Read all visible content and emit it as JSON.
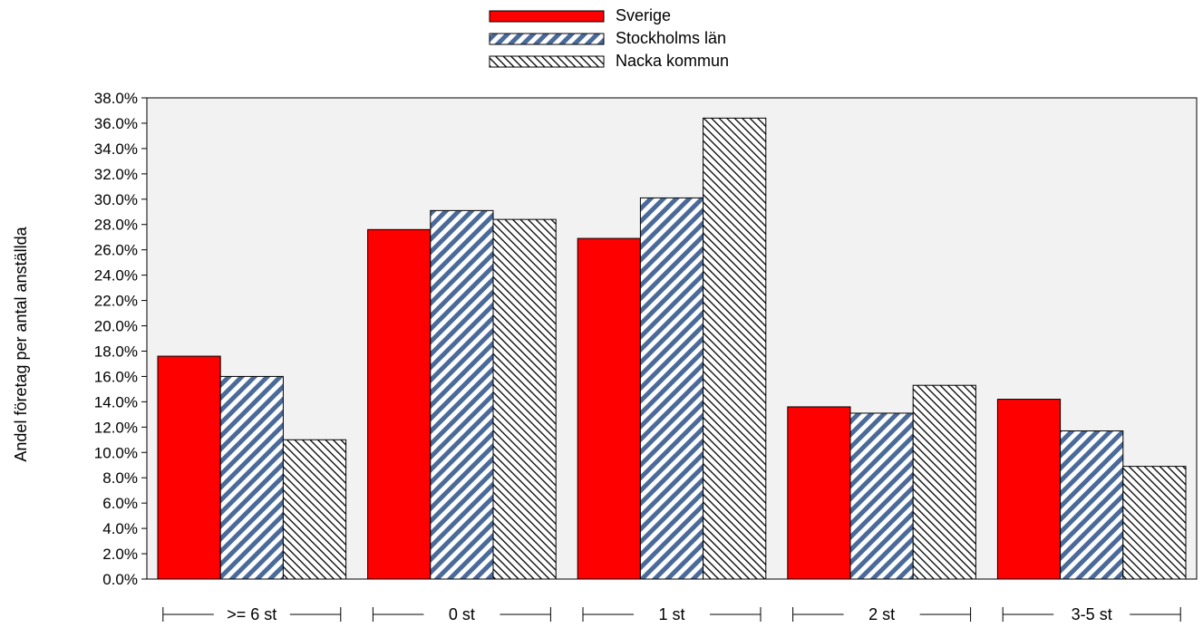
{
  "chart_data": {
    "type": "bar",
    "title": "",
    "xlabel": "",
    "ylabel": "Andel företag per antal anställda",
    "ylim": [
      0,
      38
    ],
    "yticks": [
      "0.0%",
      "2.0%",
      "4.0%",
      "6.0%",
      "8.0%",
      "10.0%",
      "12.0%",
      "14.0%",
      "16.0%",
      "18.0%",
      "20.0%",
      "22.0%",
      "24.0%",
      "26.0%",
      "28.0%",
      "30.0%",
      "32.0%",
      "34.0%",
      "36.0%",
      "38.0%"
    ],
    "categories": [
      ">= 6 st",
      "0 st",
      "1 st",
      "2 st",
      "3-5 st"
    ],
    "series": [
      {
        "name": "Sverige",
        "values": [
          17.6,
          27.6,
          26.9,
          13.6,
          14.2
        ],
        "color": "#ff0000",
        "pattern": "solid"
      },
      {
        "name": "Stockholms län",
        "values": [
          16.0,
          29.1,
          30.1,
          13.1,
          11.7
        ],
        "color": "#4a6a9a",
        "pattern": "stripes-forward"
      },
      {
        "name": "Nacka kommun",
        "values": [
          11.0,
          28.4,
          36.4,
          15.3,
          8.9
        ],
        "color": "#000000",
        "pattern": "hatch-back"
      }
    ],
    "legend_position": "top-center",
    "grid": false,
    "plot_background": "#f2f2f2"
  }
}
